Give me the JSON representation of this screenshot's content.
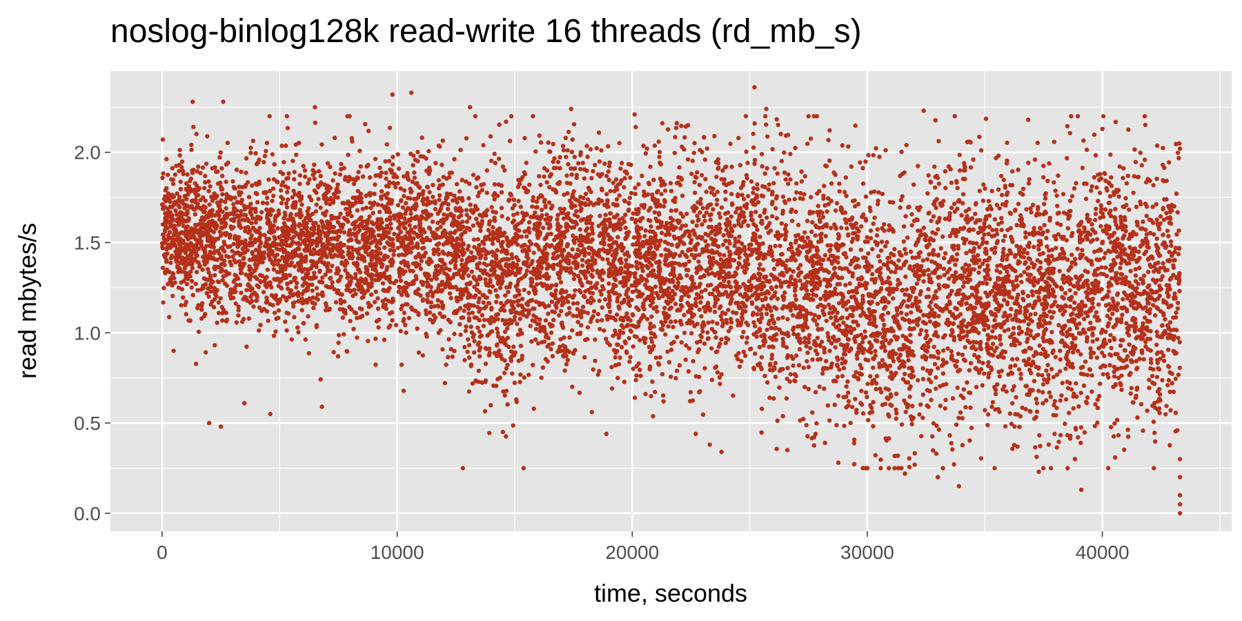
{
  "chart_data": {
    "type": "scatter",
    "title": "noslog-binlog128k read-write 16 threads (rd_mb_s)",
    "xlabel": "time, seconds",
    "ylabel": "read mbytes/s",
    "xlim": [
      -2200,
      45500
    ],
    "ylim": [
      -0.1,
      2.45
    ],
    "x_ticks": [
      0,
      10000,
      20000,
      30000,
      40000
    ],
    "x_tick_labels": [
      "0",
      "10000",
      "20000",
      "30000",
      "40000"
    ],
    "y_ticks": [
      0.0,
      0.5,
      1.0,
      1.5,
      2.0
    ],
    "y_tick_labels": [
      "0.0",
      "0.5",
      "1.0",
      "1.5",
      "2.0"
    ],
    "grid": true,
    "point_color": "#b5311a",
    "panel_color": "#e5e5e5",
    "grid_color": "#ffffff",
    "series": [
      {
        "trend_x": [
          0,
          2000,
          5000,
          8000,
          10000,
          11500,
          12500,
          14000,
          15000,
          16000,
          18000,
          20000,
          22000,
          24000,
          25000,
          26000,
          28000,
          29000,
          30000,
          31500,
          33000,
          35000,
          37000,
          39000,
          41000,
          42500,
          43300
        ],
        "trend_mean": [
          1.58,
          1.5,
          1.48,
          1.5,
          1.5,
          1.48,
          1.38,
          1.32,
          1.25,
          1.38,
          1.42,
          1.35,
          1.4,
          1.35,
          1.38,
          1.28,
          1.32,
          1.25,
          1.12,
          1.05,
          1.25,
          1.22,
          1.18,
          1.22,
          1.25,
          1.2,
          1.25
        ],
        "trend_spread": [
          0.18,
          0.22,
          0.24,
          0.24,
          0.24,
          0.25,
          0.28,
          0.3,
          0.32,
          0.3,
          0.28,
          0.3,
          0.3,
          0.3,
          0.3,
          0.32,
          0.32,
          0.33,
          0.35,
          0.37,
          0.36,
          0.35,
          0.36,
          0.36,
          0.35,
          0.36,
          0.38
        ],
        "outliers": [
          {
            "x": 2000,
            "y": 0.5
          },
          {
            "x": 2500,
            "y": 0.48
          },
          {
            "x": 3500,
            "y": 0.61
          },
          {
            "x": 4600,
            "y": 0.55
          },
          {
            "x": 6800,
            "y": 0.59
          },
          {
            "x": 9800,
            "y": 2.32
          },
          {
            "x": 10600,
            "y": 2.33
          },
          {
            "x": 13100,
            "y": 2.25
          },
          {
            "x": 17400,
            "y": 2.24
          },
          {
            "x": 25200,
            "y": 2.36
          },
          {
            "x": 25700,
            "y": 2.24
          },
          {
            "x": 32400,
            "y": 2.23
          },
          {
            "x": 33000,
            "y": 0.2
          },
          {
            "x": 33900,
            "y": 0.15
          },
          {
            "x": 39100,
            "y": 0.13
          },
          {
            "x": 31600,
            "y": 0.22
          },
          {
            "x": 37300,
            "y": 0.23
          },
          {
            "x": 23300,
            "y": 0.38
          },
          {
            "x": 23800,
            "y": 0.34
          },
          {
            "x": 26600,
            "y": 0.35
          },
          {
            "x": 22700,
            "y": 0.44
          },
          {
            "x": 18900,
            "y": 0.44
          },
          {
            "x": 14500,
            "y": 0.45
          },
          {
            "x": 27800,
            "y": 0.44
          },
          {
            "x": 28200,
            "y": 0.39
          },
          {
            "x": 41800,
            "y": 2.2
          },
          {
            "x": 1300,
            "y": 2.28
          },
          {
            "x": 2600,
            "y": 2.28
          },
          {
            "x": 6500,
            "y": 2.25
          },
          {
            "x": 20100,
            "y": 2.21
          },
          {
            "x": 43300,
            "y": 0.0
          },
          {
            "x": 43300,
            "y": 0.05
          },
          {
            "x": 43300,
            "y": 0.1
          },
          {
            "x": 43300,
            "y": 0.2
          },
          {
            "x": 43300,
            "y": 0.3
          },
          {
            "x": 43300,
            "y": 2.02
          }
        ]
      }
    ]
  }
}
